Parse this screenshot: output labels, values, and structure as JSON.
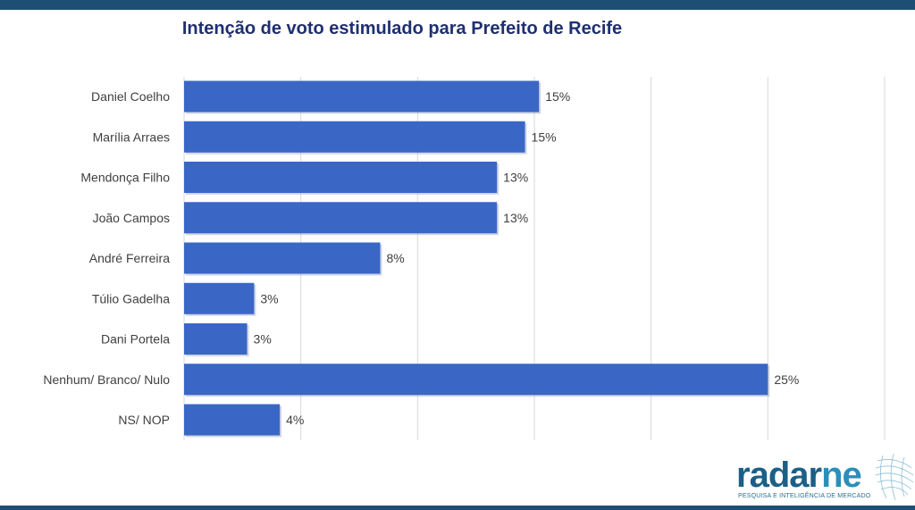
{
  "title": "Intenção de voto estimulado para Prefeito de Recife",
  "chart_data": {
    "type": "bar",
    "orientation": "horizontal",
    "title": "Intenção de voto estimulado para Prefeito de Recife",
    "categories": [
      "Daniel Coelho",
      "Marília Arraes",
      "Mendonça Filho",
      "João Campos",
      "André Ferreira",
      "Túlio Gadelha",
      "Dani Portela",
      "Nenhum/ Branco/ Nulo",
      "NS/ NOP"
    ],
    "values": [
      15.2,
      14.6,
      13.4,
      13.4,
      8.4,
      3.0,
      2.7,
      25.0,
      4.1
    ],
    "value_labels": [
      "15%",
      "15%",
      "13%",
      "13%",
      "8%",
      "3%",
      "3%",
      "25%",
      "4%"
    ],
    "xlim": [
      0,
      30
    ],
    "grid": true,
    "legend": "none",
    "bar_color": "#3a67c6"
  },
  "logo": {
    "word_main": "radar",
    "word_accent": "ne",
    "tagline": "PESQUISA E INTELIGÊNCIA DE MERCADO"
  }
}
